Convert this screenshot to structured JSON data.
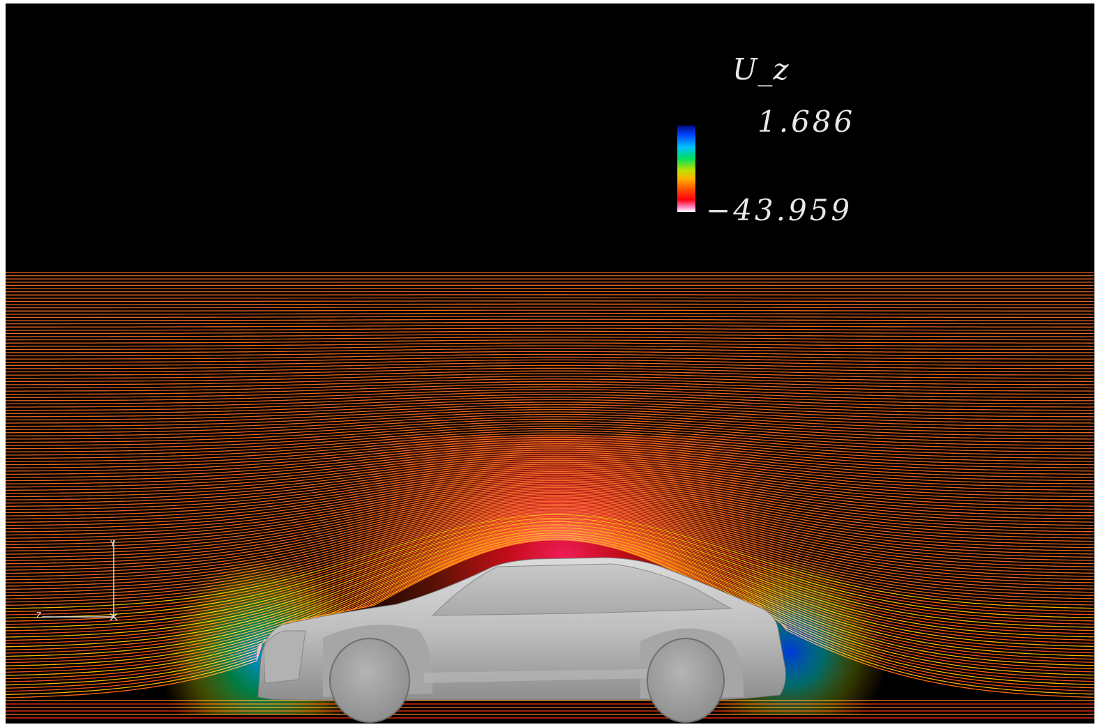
{
  "legend": {
    "title": "U_z",
    "max_label": "1.686",
    "min_label": "−43.959"
  },
  "axes_triad": {
    "horizontal_label": "z",
    "vertical_label": "Y"
  },
  "colors": {
    "background": "#000000",
    "freestream_streamline": "#e8661e",
    "car_body": "#c8c8c8"
  }
}
